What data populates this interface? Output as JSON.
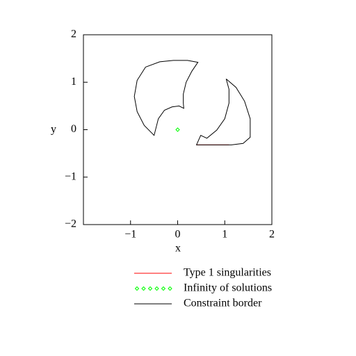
{
  "chart_data": {
    "type": "line",
    "xlabel": "x",
    "ylabel": "y",
    "xlim": [
      -2,
      2
    ],
    "ylim": [
      -2,
      2
    ],
    "xticks": [
      {
        "value": -1,
        "label": "−1"
      },
      0,
      1,
      2
    ],
    "yticks": [
      {
        "value": -2,
        "label": "−2"
      },
      {
        "value": -1,
        "label": "−1"
      },
      0,
      1,
      2
    ],
    "series": [
      {
        "name": "Type 1 singularities",
        "color": "#ff0000",
        "style": "line",
        "x": [
          0.4,
          1.09
        ],
        "y": [
          -0.32,
          -0.32
        ]
      },
      {
        "name": "Infinity of solutions",
        "color": "#00ff00",
        "style": "points",
        "x": [
          0
        ],
        "y": [
          0
        ]
      },
      {
        "name": "Constraint border",
        "color": "#000000",
        "style": "line",
        "x": [
          -0.68,
          -0.38,
          -0.09,
          0.21,
          0.43,
          0.3,
          0.18,
          0.12,
          0.12,
          0.13,
          0.03,
          -0.12,
          -0.28,
          -0.41,
          -0.5,
          -0.71,
          -0.86,
          -0.92,
          -0.86,
          -0.68,
          null,
          1.03,
          1.24,
          1.42,
          1.54,
          1.54,
          1.39,
          1.14,
          0.4,
          0.49,
          0.62,
          0.83,
          1.0,
          1.09,
          1.09,
          1.03
        ],
        "y": [
          1.32,
          1.43,
          1.46,
          1.46,
          1.42,
          1.23,
          1.0,
          0.75,
          0.56,
          0.45,
          0.5,
          0.48,
          0.41,
          0.23,
          -0.12,
          0.09,
          0.38,
          0.7,
          1.04,
          1.32,
          null,
          1.07,
          0.89,
          0.6,
          0.23,
          -0.16,
          -0.29,
          -0.32,
          -0.32,
          -0.12,
          -0.18,
          -0.01,
          0.23,
          0.56,
          0.85,
          1.07
        ]
      }
    ]
  }
}
